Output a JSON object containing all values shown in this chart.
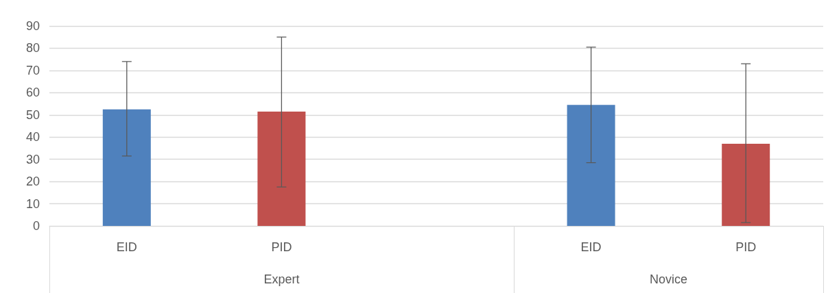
{
  "chart_data": {
    "type": "bar",
    "categories": [
      "EID",
      "PID",
      null,
      "EID",
      "PID"
    ],
    "values": [
      52.5,
      51.5,
      null,
      54.5,
      37
    ],
    "colors": [
      "#4f81bd",
      "#c0504d",
      null,
      "#4f81bd",
      "#c0504d"
    ],
    "errors": [
      [
        31.5,
        74
      ],
      [
        17.5,
        85
      ],
      null,
      [
        28.5,
        80.5
      ],
      [
        1.5,
        73
      ]
    ],
    "annotations": [
      "Expert",
      "Novice"
    ],
    "ylim": [
      0,
      90
    ],
    "yticks": [
      0,
      10,
      20,
      30,
      40,
      50,
      60,
      70,
      80,
      90
    ],
    "grid": "y"
  }
}
